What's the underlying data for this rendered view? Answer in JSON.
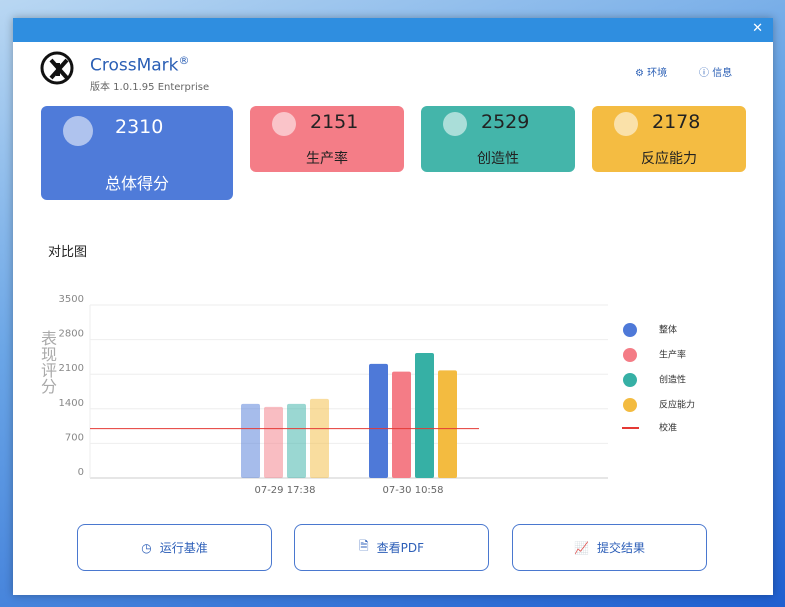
{
  "app": {
    "name": "CrossMark",
    "mark": "®",
    "version": "版本 1.0.1.95 Enterprise",
    "links": [
      "环境",
      "信息"
    ]
  },
  "scores": [
    {
      "value": 2310,
      "label": "总体得分",
      "color": "#4f7bd9"
    },
    {
      "value": 2151,
      "label": "生产率",
      "color": "#f47d87"
    },
    {
      "value": 2529,
      "label": "创造性",
      "color": "#44b5aa"
    },
    {
      "value": 2178,
      "label": "反应能力",
      "color": "#f4bc42"
    }
  ],
  "buttons": [
    "运行基准",
    "查看PDF",
    "提交结果"
  ],
  "chart_data": {
    "type": "bar",
    "title": "对比图",
    "y_label": "表现评分",
    "categories": [
      "07-29 17:38",
      "07-30 10:58"
    ],
    "series": [
      {
        "name": "整体",
        "color": "#4e79d8",
        "values": [
          1500,
          2310
        ]
      },
      {
        "name": "生产率",
        "color": "#f47c86",
        "values": [
          1440,
          2151
        ]
      },
      {
        "name": "创造性",
        "color": "#36b0a5",
        "values": [
          1500,
          2529
        ]
      },
      {
        "name": "反应能力",
        "color": "#f3bb40",
        "values": [
          1600,
          2178
        ]
      }
    ],
    "reference_line": {
      "name": "校准",
      "value": 1000,
      "color": "#e53935"
    },
    "ylim": [
      0,
      3500
    ],
    "yticks": [
      0,
      700,
      1400,
      2100,
      2800,
      3500
    ],
    "grid": true,
    "legend": "right"
  }
}
